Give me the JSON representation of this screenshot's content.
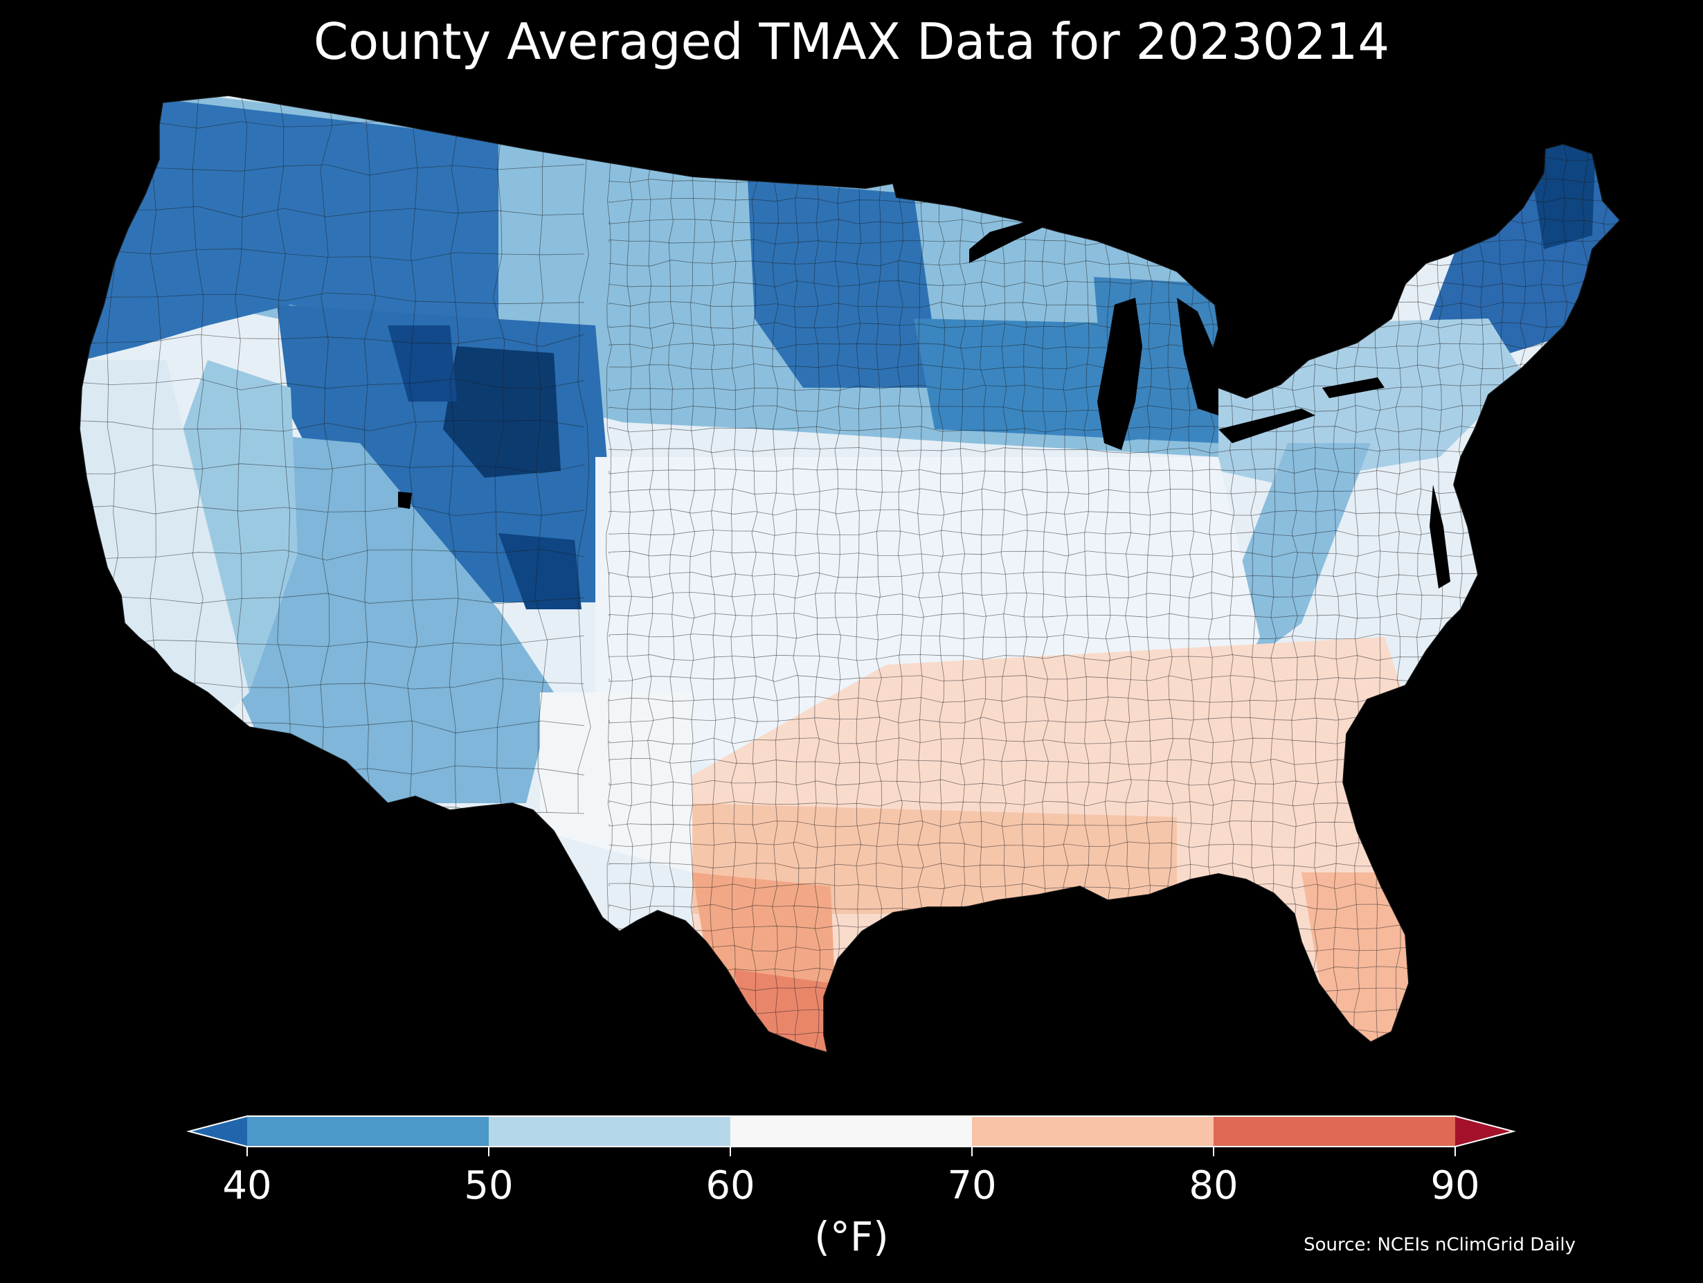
{
  "title": "County Averaged TMAX Data for 20230214",
  "source": "Source: NCEIs nClimGrid Daily",
  "colorbar": {
    "unit": "(°F)",
    "ticks": [
      "40",
      "50",
      "60",
      "70",
      "80",
      "90"
    ],
    "bins": [
      {
        "min": 40,
        "max": 50,
        "color": "#4b98c9"
      },
      {
        "min": 50,
        "max": 60,
        "color": "#b5d7ea"
      },
      {
        "min": 60,
        "max": 70,
        "color": "#f7f7f7"
      },
      {
        "min": 70,
        "max": 80,
        "color": "#f8c3a7"
      },
      {
        "min": 80,
        "max": 90,
        "color": "#de6a55"
      }
    ],
    "under_color": "#2166ac",
    "over_color": "#a3122a",
    "extend": "both"
  },
  "map": {
    "region": "contiguous-us",
    "variable": "TMAX",
    "palette": {
      "very_cold": "#0b3c70",
      "cold": "#2c70b4",
      "cool": "#4b98c9",
      "mild": "#9ccae2",
      "neutral": "#e8f1f7",
      "warm": "#f8d7c6",
      "hot": "#f2a582"
    }
  }
}
